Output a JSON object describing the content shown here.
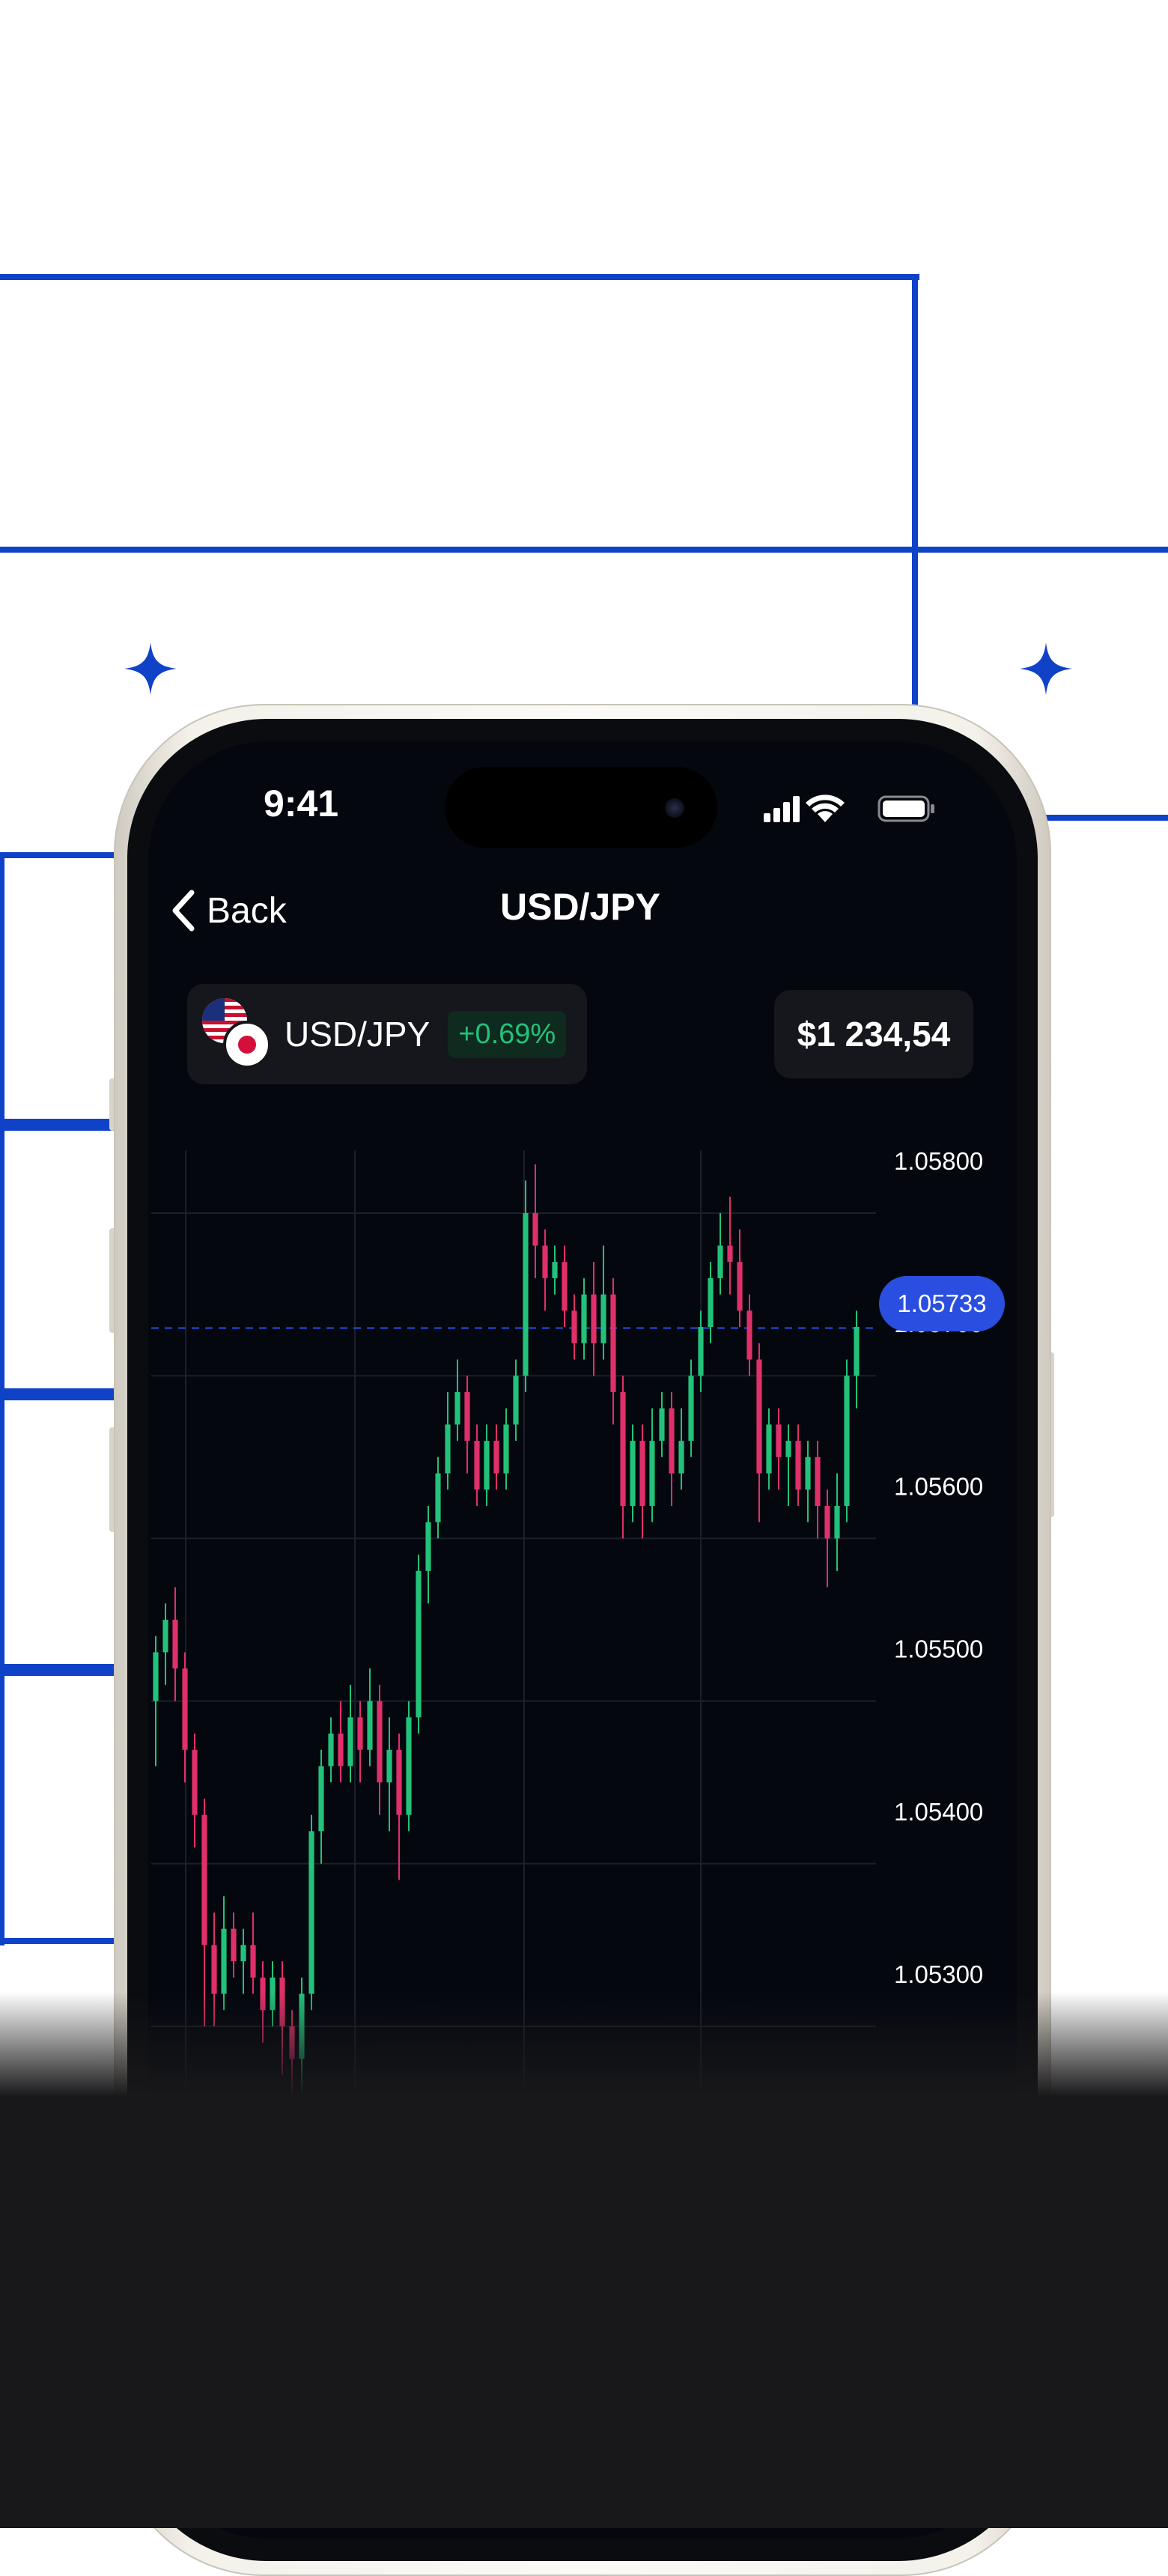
{
  "status_bar": {
    "time": "9:41"
  },
  "nav": {
    "back_label": "Back",
    "title": "USD/JPY"
  },
  "pair": {
    "label": "USD/JPY",
    "change": "+0.69%"
  },
  "balance": "$1 234,54",
  "colors": {
    "accent": "#1042c8",
    "bullish": "#22c27a",
    "bearish": "#e0306a",
    "price_tag": "#2a4fe0"
  },
  "icons": [
    "chevron-left-icon",
    "signal-icon",
    "wifi-icon",
    "battery-icon",
    "us-flag-icon",
    "japan-flag-icon",
    "sparkle-icon"
  ],
  "chart_data": {
    "type": "candlestick",
    "y_ticks": [
      "1.05800",
      "1.05700",
      "1.05600",
      "1.05500",
      "1.05400",
      "1.05300"
    ],
    "y_range": [
      1.0522,
      1.0586
    ],
    "current_price": "1.05733",
    "grid": true,
    "candles": [
      [
        1.055,
        1.0553,
        1.0546,
        1.0554
      ],
      [
        1.0553,
        1.0555,
        1.0551,
        1.0556
      ],
      [
        1.0555,
        1.0552,
        1.055,
        1.0557
      ],
      [
        1.0552,
        1.0547,
        1.0545,
        1.0553
      ],
      [
        1.0547,
        1.0543,
        1.0541,
        1.0548
      ],
      [
        1.0543,
        1.0535,
        1.053,
        1.0544
      ],
      [
        1.0535,
        1.0532,
        1.053,
        1.0537
      ],
      [
        1.0532,
        1.0536,
        1.0531,
        1.0538
      ],
      [
        1.0536,
        1.0534,
        1.0533,
        1.0537
      ],
      [
        1.0534,
        1.0535,
        1.0532,
        1.0536
      ],
      [
        1.0535,
        1.0533,
        1.0532,
        1.0537
      ],
      [
        1.0533,
        1.0531,
        1.0529,
        1.0534
      ],
      [
        1.0531,
        1.0533,
        1.053,
        1.0534
      ],
      [
        1.0533,
        1.053,
        1.0527,
        1.0534
      ],
      [
        1.053,
        1.0528,
        1.0525,
        1.0531
      ],
      [
        1.0528,
        1.0532,
        1.0526,
        1.0533
      ],
      [
        1.0532,
        1.0542,
        1.0531,
        1.0543
      ],
      [
        1.0542,
        1.0546,
        1.054,
        1.0547
      ],
      [
        1.0546,
        1.0548,
        1.0545,
        1.0549
      ],
      [
        1.0548,
        1.0546,
        1.0545,
        1.055
      ],
      [
        1.0546,
        1.0549,
        1.0545,
        1.0551
      ],
      [
        1.0549,
        1.0547,
        1.0545,
        1.055
      ],
      [
        1.0547,
        1.055,
        1.0546,
        1.0552
      ],
      [
        1.055,
        1.0545,
        1.0543,
        1.0551
      ],
      [
        1.0545,
        1.0547,
        1.0542,
        1.0549
      ],
      [
        1.0547,
        1.0543,
        1.0539,
        1.0548
      ],
      [
        1.0543,
        1.0549,
        1.0542,
        1.055
      ],
      [
        1.0549,
        1.0558,
        1.0548,
        1.0559
      ],
      [
        1.0558,
        1.0561,
        1.0556,
        1.0562
      ],
      [
        1.0561,
        1.0564,
        1.056,
        1.0565
      ],
      [
        1.0564,
        1.0567,
        1.0563,
        1.0569
      ],
      [
        1.0567,
        1.0569,
        1.0566,
        1.0571
      ],
      [
        1.0569,
        1.0566,
        1.0564,
        1.057
      ],
      [
        1.0566,
        1.0563,
        1.0562,
        1.0567
      ],
      [
        1.0563,
        1.0566,
        1.0562,
        1.0567
      ],
      [
        1.0566,
        1.0564,
        1.0563,
        1.0567
      ],
      [
        1.0564,
        1.0567,
        1.0563,
        1.0568
      ],
      [
        1.0567,
        1.057,
        1.0566,
        1.0571
      ],
      [
        1.057,
        1.058,
        1.0569,
        1.0582
      ],
      [
        1.058,
        1.0578,
        1.0576,
        1.0583
      ],
      [
        1.0578,
        1.0576,
        1.0574,
        1.0579
      ],
      [
        1.0576,
        1.0577,
        1.0575,
        1.0578
      ],
      [
        1.0577,
        1.0574,
        1.0573,
        1.0578
      ],
      [
        1.0574,
        1.0572,
        1.0571,
        1.0575
      ],
      [
        1.0572,
        1.0575,
        1.0571,
        1.0576
      ],
      [
        1.0575,
        1.0572,
        1.057,
        1.0577
      ],
      [
        1.0572,
        1.0575,
        1.0571,
        1.0578
      ],
      [
        1.0575,
        1.0569,
        1.0567,
        1.0576
      ],
      [
        1.0569,
        1.0562,
        1.056,
        1.057
      ],
      [
        1.0562,
        1.0566,
        1.0561,
        1.0567
      ],
      [
        1.0566,
        1.0562,
        1.056,
        1.0567
      ],
      [
        1.0562,
        1.0566,
        1.0561,
        1.0568
      ],
      [
        1.0566,
        1.0568,
        1.0565,
        1.0569
      ],
      [
        1.0568,
        1.0564,
        1.0562,
        1.0569
      ],
      [
        1.0564,
        1.0566,
        1.0563,
        1.0568
      ],
      [
        1.0566,
        1.057,
        1.0565,
        1.0571
      ],
      [
        1.057,
        1.0573,
        1.0569,
        1.0574
      ],
      [
        1.0573,
        1.0576,
        1.0572,
        1.0577
      ],
      [
        1.0576,
        1.0578,
        1.0575,
        1.058
      ],
      [
        1.0578,
        1.0577,
        1.0575,
        1.0581
      ],
      [
        1.0577,
        1.0574,
        1.0573,
        1.0579
      ],
      [
        1.0574,
        1.0571,
        1.057,
        1.0575
      ],
      [
        1.0571,
        1.0564,
        1.0561,
        1.0572
      ],
      [
        1.0564,
        1.0567,
        1.0563,
        1.0568
      ],
      [
        1.0567,
        1.0565,
        1.0563,
        1.0568
      ],
      [
        1.0565,
        1.0566,
        1.0562,
        1.0567
      ],
      [
        1.0566,
        1.0563,
        1.0562,
        1.0567
      ],
      [
        1.0563,
        1.0565,
        1.0561,
        1.0566
      ],
      [
        1.0565,
        1.0562,
        1.056,
        1.0566
      ],
      [
        1.0562,
        1.056,
        1.0557,
        1.0563
      ],
      [
        1.056,
        1.0562,
        1.0558,
        1.0564
      ],
      [
        1.0562,
        1.057,
        1.0561,
        1.0571
      ],
      [
        1.057,
        1.0573,
        1.0568,
        1.0574
      ]
    ]
  }
}
